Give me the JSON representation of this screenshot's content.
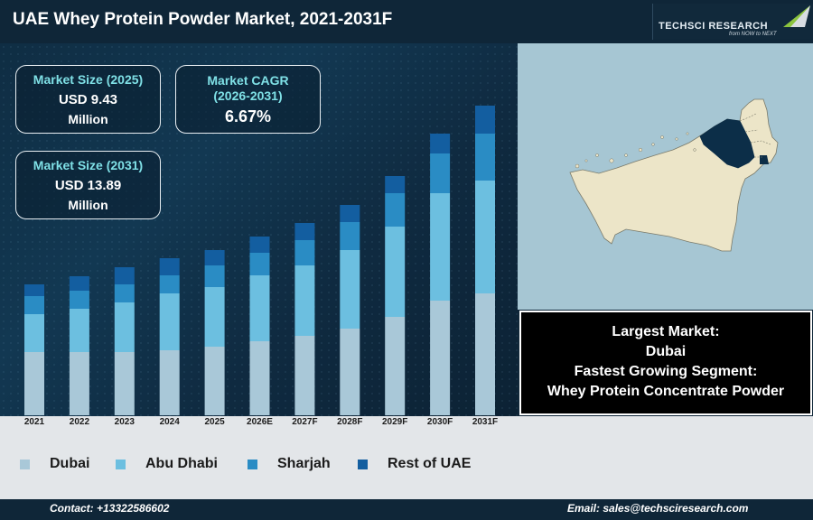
{
  "header": {
    "title": "UAE Whey Protein Powder Market, 2021-2031F",
    "logo_name": "TECHSCI RESEARCH",
    "logo_tagline": "from NOW to NEXT"
  },
  "kpis": {
    "size_2025": {
      "label": "Market Size (2025)",
      "value": "USD 9.43",
      "unit": "Million"
    },
    "cagr": {
      "label_line1": "Market CAGR",
      "label_line2": "(2026-2031)",
      "value": "6.67%"
    },
    "size_2031": {
      "label": "Market Size (2031)",
      "value": "USD 13.89",
      "unit": "Million"
    }
  },
  "info_box": {
    "largest_label": "Largest Market:",
    "largest_value": "Dubai",
    "fastest_label": "Fastest Growing Segment:",
    "fastest_value": "Whey Protein Concentrate Powder"
  },
  "colors": {
    "dubai": "#a9c8d8",
    "abu_dhabi": "#6cbfe0",
    "sharjah": "#2a8cc4",
    "rest": "#135ea0",
    "highlight_region": "#0c2e48",
    "land": "#ece5c8"
  },
  "chart_data": {
    "type": "bar",
    "stacked": true,
    "categories": [
      "2021",
      "2022",
      "2023",
      "2024",
      "2025",
      "2026E",
      "2027F",
      "2028F",
      "2029F",
      "2030F",
      "2031F"
    ],
    "series": [
      {
        "name": "Dubai",
        "values": [
          70,
          70,
          70,
          72,
          76,
          82,
          88,
          96,
          109,
          127,
          135
        ]
      },
      {
        "name": "Abu Dhabi",
        "values": [
          42,
          48,
          55,
          63,
          66,
          73,
          78,
          87,
          100,
          119,
          125
        ]
      },
      {
        "name": "Sharjah",
        "values": [
          20,
          20,
          20,
          20,
          24,
          25,
          28,
          31,
          37,
          44,
          52
        ]
      },
      {
        "name": "Rest of UAE",
        "values": [
          13,
          16,
          19,
          19,
          17,
          18,
          19,
          19,
          19,
          22,
          31
        ]
      }
    ],
    "grid": false,
    "legend_position": "bottom"
  },
  "legend": {
    "items": [
      {
        "label": "Dubai",
        "color": "#a9c8d8"
      },
      {
        "label": "Abu Dhabi",
        "color": "#6cbfe0"
      },
      {
        "label": "Sharjah",
        "color": "#2a8cc4"
      },
      {
        "label": "Rest of UAE",
        "color": "#135ea0"
      }
    ]
  },
  "footer": {
    "contact": "Contact: +13322586602",
    "email": "Email: sales@techsciresearch.com"
  }
}
